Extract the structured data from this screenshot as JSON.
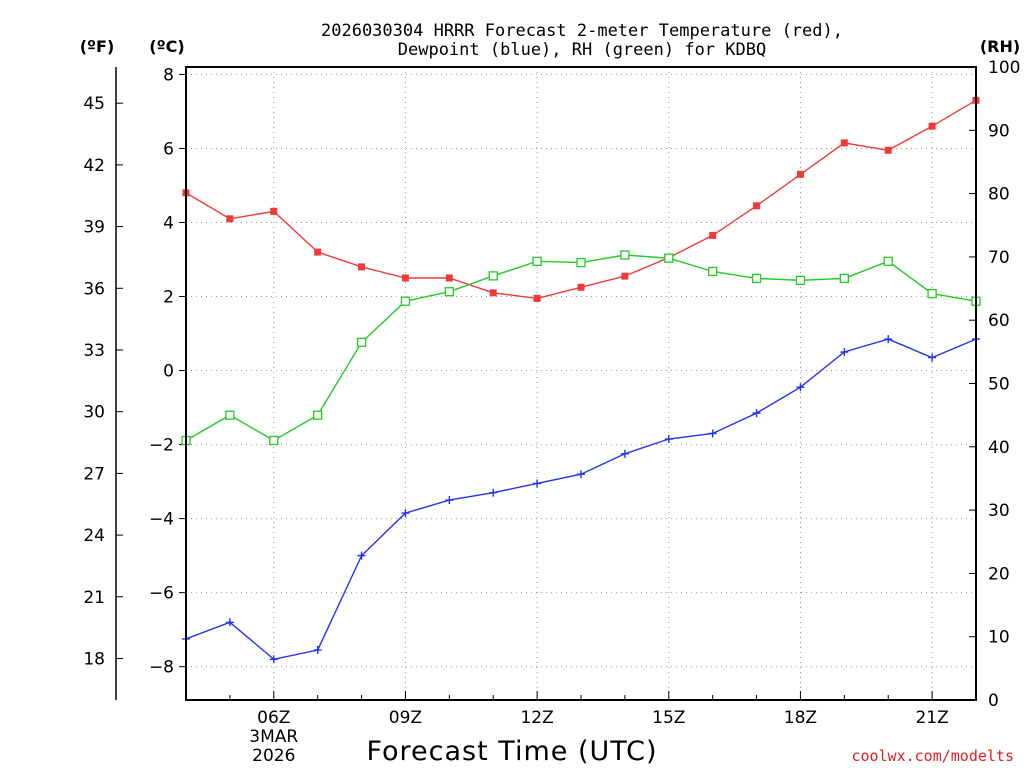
{
  "chart_data": {
    "type": "line",
    "title": "2026030304 HRRR Forecast 2-meter Temperature (red),",
    "title_line2": "Dewpoint (blue), RH (green) for KDBQ",
    "xlabel": "Forecast Time (UTC)",
    "unit_labels": {
      "fahrenheit": "(ºF)",
      "celsius": "(ºC)",
      "rh": "(RH)"
    },
    "x_hours": [
      4,
      5,
      6,
      7,
      8,
      9,
      10,
      11,
      12,
      13,
      14,
      15,
      16,
      17,
      18,
      19,
      20,
      21,
      22
    ],
    "x_ticks": [
      {
        "hour": 6,
        "label": "06Z",
        "sub1": "3MAR",
        "sub2": "2026"
      },
      {
        "hour": 9,
        "label": "09Z"
      },
      {
        "hour": 12,
        "label": "12Z"
      },
      {
        "hour": 15,
        "label": "15Z"
      },
      {
        "hour": 18,
        "label": "18Z"
      },
      {
        "hour": 21,
        "label": "21Z"
      }
    ],
    "ylim_celsius": [
      -8.9,
      8.2
    ],
    "yticks_celsius": [
      -8,
      -6,
      -4,
      -2,
      0,
      2,
      4,
      6,
      8
    ],
    "yticks_fahrenheit": [
      18,
      21,
      24,
      27,
      30,
      33,
      36,
      39,
      42,
      45
    ],
    "ylim_rh": [
      0,
      100
    ],
    "yticks_rh": [
      0,
      10,
      20,
      30,
      40,
      50,
      60,
      70,
      80,
      90,
      100
    ],
    "series": [
      {
        "name": "Temperature",
        "axis": "celsius",
        "color": "#ef3a3a",
        "marker": "filled-square",
        "values": [
          4.8,
          4.1,
          4.3,
          3.2,
          2.8,
          2.5,
          2.5,
          2.1,
          1.95,
          2.25,
          2.55,
          3.05,
          3.65,
          4.45,
          5.3,
          6.15,
          5.95,
          6.6,
          7.3
        ]
      },
      {
        "name": "Dewpoint",
        "axis": "celsius",
        "color": "#2233ee",
        "marker": "plus",
        "values": [
          -7.25,
          -6.8,
          -7.8,
          -7.55,
          -5.0,
          -3.85,
          -3.5,
          -3.3,
          -3.05,
          -2.8,
          -2.25,
          -1.85,
          -1.7,
          -1.15,
          -0.45,
          0.5,
          0.85,
          0.35,
          0.85
        ]
      },
      {
        "name": "RH",
        "axis": "rh",
        "color": "#22cc22",
        "marker": "open-square",
        "values": [
          41,
          45,
          41,
          45,
          56.5,
          63,
          64.5,
          67,
          69.3,
          69.1,
          70.3,
          69.8,
          67.7,
          66.6,
          66.3,
          66.6,
          69.3,
          64.2,
          63.0
        ]
      }
    ]
  },
  "credit": "coolwx.com/modelts"
}
